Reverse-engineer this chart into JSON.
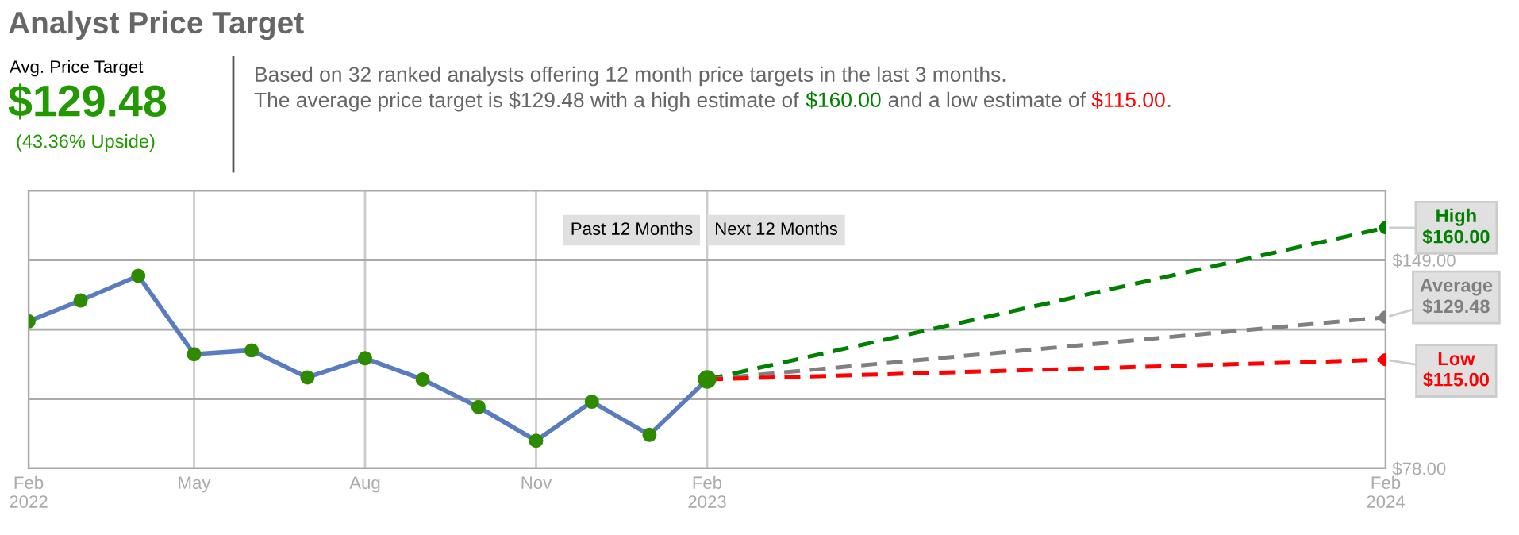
{
  "chart_data": {
    "type": "line",
    "title": "Analyst Price Target",
    "annotations": [
      "Avg. Price Target",
      "$129.48",
      "(43.36% Upside)",
      "Based on 32 ranked analysts offering 12 month price targets in the last 3 months.",
      "The average price target is $129.48 with a high estimate of ",
      "$160.00",
      " and a low estimate of ",
      "$115.00",
      ".",
      "Past 12 Months",
      "Next 12 Months"
    ],
    "series": [
      {
        "color": "#5b7bc0",
        "marker": "circle",
        "line_style": "solid",
        "x": [
          "2022-02-01",
          "2022-03-01",
          "2022-04-01",
          "2022-05-01",
          "2022-06-01",
          "2022-07-01",
          "2022-08-01",
          "2022-09-01",
          "2022-10-01",
          "2022-11-01",
          "2022-12-01",
          "2023-01-01",
          "2023-02-01"
        ],
        "values": [
          128.1,
          135.2,
          143.6,
          116.9,
          118.2,
          109.0,
          115.5,
          108.3,
          98.9,
          87.4,
          100.7,
          89.4,
          108.3
        ]
      },
      {
        "name": "High",
        "color": "#008000",
        "marker": "circle",
        "line_style": "dashed",
        "x": [
          "2023-02-01",
          "2024-02-01"
        ],
        "values": [
          108.3,
          160.0
        ],
        "value_labels": [
          null,
          "$160.00"
        ]
      },
      {
        "name": "Average",
        "color": "#808080",
        "marker": "circle",
        "line_style": "dashed",
        "x": [
          "2023-02-01",
          "2024-02-01"
        ],
        "values": [
          108.3,
          129.48
        ],
        "value_labels": [
          null,
          "$129.48"
        ]
      },
      {
        "name": "Low",
        "color": "#ff0000",
        "marker": "circle",
        "line_style": "dashed",
        "x": [
          "2023-02-01",
          "2024-02-01"
        ],
        "values": [
          108.3,
          115.0
        ],
        "value_labels": [
          null,
          "$115.00"
        ]
      }
    ],
    "xlim": [
      "2022-02-01",
      "2024-02-01"
    ],
    "xticks": [
      {
        "value": "2022-02-01",
        "label": "Feb\n2022"
      },
      {
        "value": "2022-05-01",
        "label": "May"
      },
      {
        "value": "2022-08-01",
        "label": "Aug"
      },
      {
        "value": "2022-11-01",
        "label": "Nov"
      },
      {
        "value": "2023-02-01",
        "label": "Feb\n2023"
      },
      {
        "value": "2024-02-01",
        "label": "Feb\n2024"
      }
    ],
    "ylim": [
      78.0,
      172.67
    ],
    "yticks": [
      {
        "value": 78.0,
        "label": "$78.00"
      },
      {
        "value": 101.67,
        "label": null
      },
      {
        "value": 125.33,
        "label": null
      },
      {
        "value": 149.0,
        "label": "$149.00"
      },
      {
        "value": 172.67,
        "label": null
      }
    ],
    "grid": true,
    "legend": false
  }
}
